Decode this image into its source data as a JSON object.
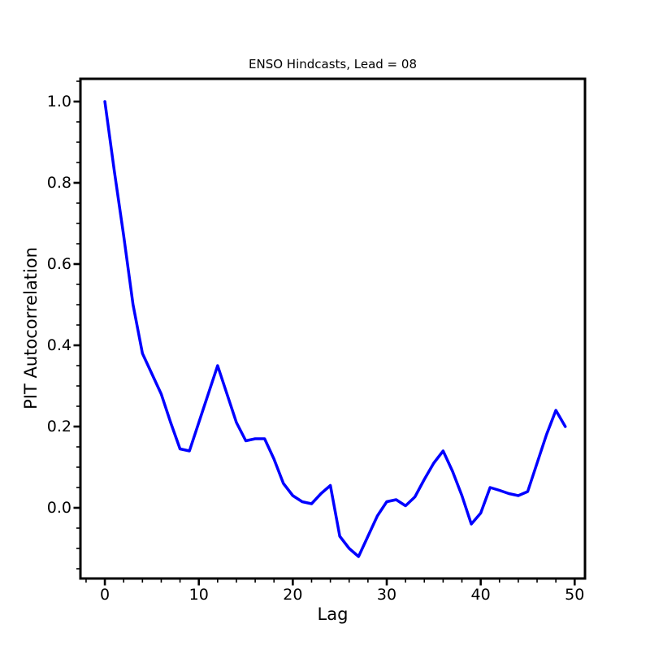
{
  "page": {
    "background": "#ffffff"
  },
  "chart_data": {
    "type": "line",
    "title": "ENSO Hindcasts, Lead = 08",
    "xlabel": "Lag",
    "ylabel": "PIT Autocorrelation",
    "grid": false,
    "legend": "none",
    "line_color": "#0000ff",
    "line_width": 3.5,
    "xlim": [
      -2.6,
      51.1
    ],
    "ylim": [
      -0.174,
      1.056
    ],
    "x_ticks": {
      "major": [
        0,
        10,
        20,
        30,
        40,
        50
      ],
      "labels": [
        "0",
        "10",
        "20",
        "30",
        "40",
        "50"
      ],
      "minor_step": 2
    },
    "y_ticks": {
      "major": [
        0.0,
        0.2,
        0.4,
        0.6,
        0.8,
        1.0
      ],
      "labels": [
        "0.0",
        "0.2",
        "0.4",
        "0.6",
        "0.8",
        "1.0"
      ],
      "minor_step": 0.05
    },
    "x": [
      0,
      1,
      2,
      3,
      4,
      5,
      6,
      7,
      8,
      9,
      10,
      11,
      12,
      13,
      14,
      15,
      16,
      17,
      18,
      19,
      20,
      21,
      22,
      23,
      24,
      25,
      26,
      27,
      28,
      29,
      30,
      31,
      32,
      33,
      34,
      35,
      36,
      37,
      38,
      39,
      40,
      41,
      42,
      43,
      44,
      45,
      46,
      47,
      48,
      49
    ],
    "series": [
      {
        "name": "PIT autocorrelation vs lag",
        "values": [
          1.0,
          0.83,
          0.67,
          0.5,
          0.38,
          0.33,
          0.28,
          0.21,
          0.145,
          0.14,
          0.21,
          0.28,
          0.35,
          0.28,
          0.21,
          0.165,
          0.17,
          0.17,
          0.12,
          0.06,
          0.03,
          0.015,
          0.01,
          0.035,
          0.055,
          -0.07,
          -0.1,
          -0.12,
          -0.07,
          -0.02,
          0.015,
          0.02,
          0.005,
          0.027,
          0.07,
          0.11,
          0.14,
          0.09,
          0.03,
          -0.04,
          -0.013,
          0.05,
          0.043,
          0.035,
          0.03,
          0.04,
          0.11,
          0.18,
          0.24,
          0.2
        ]
      }
    ]
  }
}
